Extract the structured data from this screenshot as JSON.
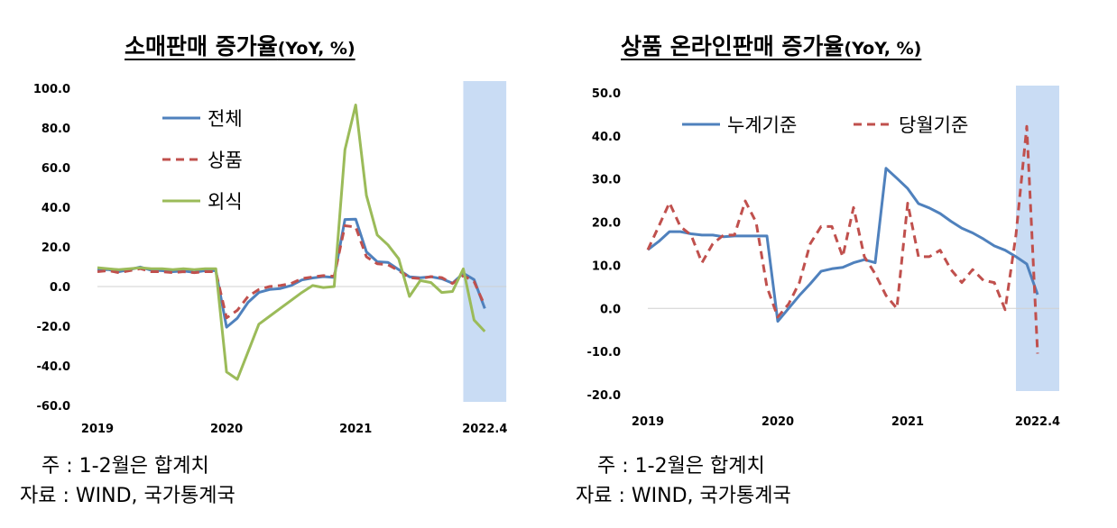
{
  "charts": [
    {
      "title": "소매판매 증가율",
      "unit": "(YoY, %)",
      "note_line1": "주 : 1-2월은 합계치",
      "note_line2": "자료 : WIND, 국가통계국"
    },
    {
      "title": "상품 온라인판매 증가율",
      "unit": "(YoY, %)",
      "note_line1": "주 : 1-2월은 합계치",
      "note_line2": "자료 : WIND, 국가통계국"
    }
  ],
  "chart_data": [
    {
      "type": "line",
      "title": "소매판매 증가율(YoY, %)",
      "ylim": [
        -60,
        100
      ],
      "yticks": [
        -60,
        -40,
        -20,
        0,
        20,
        40,
        60,
        80,
        100
      ],
      "xlim": [
        0,
        40
      ],
      "xticks": [
        {
          "x": 0,
          "label": "2019"
        },
        {
          "x": 12,
          "label": "2020"
        },
        {
          "x": 24,
          "label": "2021"
        },
        {
          "x": 36,
          "label": "2022.4"
        }
      ],
      "highlight": {
        "from": 34,
        "to": 38,
        "color": "#c9dcf4"
      },
      "legend_position": "top-left",
      "series": [
        {
          "name": "전체",
          "color": "#4f81bd",
          "dash": false,
          "x": [
            0,
            1,
            2,
            3,
            4,
            5,
            6,
            7,
            8,
            9,
            10,
            11,
            12,
            13,
            14,
            15,
            16,
            17,
            18,
            19,
            20,
            21,
            22,
            23,
            24,
            25,
            26,
            27,
            28,
            29,
            30,
            31,
            32,
            33,
            34,
            35,
            36
          ],
          "y": [
            8.2,
            8.6,
            7.5,
            8.6,
            9.8,
            8.2,
            8.0,
            7.5,
            7.8,
            7.2,
            8.0,
            8.0,
            -20.5,
            -16.0,
            -8.0,
            -3.0,
            -1.5,
            -1.0,
            0.5,
            3.3,
            4.3,
            5.0,
            4.6,
            33.8,
            34.0,
            17.5,
            12.5,
            12.2,
            8.5,
            4.9,
            4.4,
            4.9,
            3.9,
            1.7,
            6.7,
            3.5,
            -11.1
          ]
        },
        {
          "name": "상품",
          "color": "#c0504d",
          "dash": true,
          "x": [
            0,
            1,
            2,
            3,
            4,
            5,
            6,
            7,
            8,
            9,
            10,
            11,
            12,
            13,
            14,
            15,
            16,
            17,
            18,
            19,
            20,
            21,
            22,
            23,
            24,
            25,
            26,
            27,
            28,
            29,
            30,
            31,
            32,
            33,
            34,
            35,
            36
          ],
          "y": [
            7.5,
            8.0,
            7.0,
            8.0,
            9.0,
            7.5,
            7.5,
            7.0,
            7.5,
            7.0,
            7.5,
            7.5,
            -15.8,
            -12.0,
            -5.0,
            -1.5,
            0.0,
            0.5,
            1.5,
            4.0,
            4.8,
            5.5,
            5.2,
            30.7,
            30.0,
            15.0,
            11.5,
            11.0,
            8.0,
            4.5,
            4.0,
            5.0,
            4.5,
            1.5,
            5.5,
            2.5,
            -9.7
          ]
        },
        {
          "name": "외식",
          "color": "#9bbb59",
          "dash": false,
          "x": [
            0,
            1,
            2,
            3,
            4,
            5,
            6,
            7,
            8,
            9,
            10,
            11,
            12,
            13,
            14,
            15,
            16,
            17,
            18,
            19,
            20,
            21,
            22,
            23,
            24,
            25,
            26,
            27,
            28,
            29,
            30,
            31,
            32,
            33,
            34,
            35,
            36
          ],
          "y": [
            9.5,
            9.0,
            8.5,
            9.0,
            9.5,
            9.0,
            9.0,
            8.5,
            9.0,
            8.5,
            9.0,
            9.0,
            -43.1,
            -46.8,
            -33.0,
            -19.0,
            -15.0,
            -11.0,
            -7.0,
            -3.0,
            0.5,
            -0.5,
            0.0,
            69.0,
            91.6,
            46.0,
            26.0,
            21.0,
            14.0,
            -5.0,
            3.0,
            2.0,
            -3.0,
            -2.5,
            8.9,
            -16.9,
            -22.7
          ]
        }
      ]
    },
    {
      "type": "line",
      "title": "상품 온라인판매 증가율(YoY, %)",
      "ylim": [
        -20,
        50
      ],
      "yticks": [
        -20,
        -10,
        0,
        10,
        20,
        30,
        40,
        50
      ],
      "xlim": [
        0,
        40
      ],
      "xticks": [
        {
          "x": 0,
          "label": "2019"
        },
        {
          "x": 12,
          "label": "2020"
        },
        {
          "x": 24,
          "label": "2021"
        },
        {
          "x": 36,
          "label": "2022.4"
        }
      ],
      "highlight": {
        "from": 34,
        "to": 38,
        "color": "#c9dcf4"
      },
      "legend_position": "top",
      "series": [
        {
          "name": "누계기준",
          "color": "#4f81bd",
          "dash": false,
          "x": [
            0,
            1,
            2,
            3,
            4,
            5,
            6,
            7,
            8,
            9,
            10,
            11,
            12,
            13,
            14,
            15,
            16,
            17,
            18,
            19,
            20,
            21,
            22,
            23,
            24,
            25,
            26,
            27,
            28,
            29,
            30,
            31,
            32,
            33,
            34,
            35,
            36
          ],
          "y": [
            13.6,
            15.5,
            17.8,
            17.8,
            17.3,
            17.0,
            17.0,
            16.6,
            16.8,
            16.8,
            16.8,
            16.8,
            -3.0,
            0.0,
            3.0,
            5.7,
            8.6,
            9.2,
            9.5,
            10.6,
            11.3,
            10.6,
            32.5,
            30.2,
            27.8,
            24.3,
            23.3,
            22.0,
            20.2,
            18.6,
            17.5,
            16.1,
            14.5,
            13.5,
            12.0,
            10.3,
            3.2
          ]
        },
        {
          "name": "당월기준",
          "color": "#c0504d",
          "dash": true,
          "x": [
            0,
            1,
            2,
            3,
            4,
            5,
            6,
            7,
            8,
            9,
            10,
            11,
            12,
            13,
            14,
            15,
            16,
            17,
            18,
            19,
            20,
            21,
            22,
            23,
            24,
            25,
            26,
            27,
            28,
            29,
            30,
            31,
            32,
            33,
            34,
            35,
            36
          ],
          "y": [
            13.6,
            19.0,
            24.5,
            19.0,
            17.0,
            10.6,
            15.0,
            17.0,
            17.0,
            24.9,
            20.0,
            5.0,
            -2.0,
            1.0,
            6.0,
            15.0,
            19.0,
            19.0,
            12.0,
            23.4,
            12.0,
            8.0,
            3.0,
            0.0,
            24.4,
            12.0,
            12.0,
            13.5,
            9.0,
            6.0,
            9.0,
            6.5,
            6.0,
            -0.3,
            17.0,
            42.2,
            -10.5
          ]
        }
      ]
    }
  ]
}
